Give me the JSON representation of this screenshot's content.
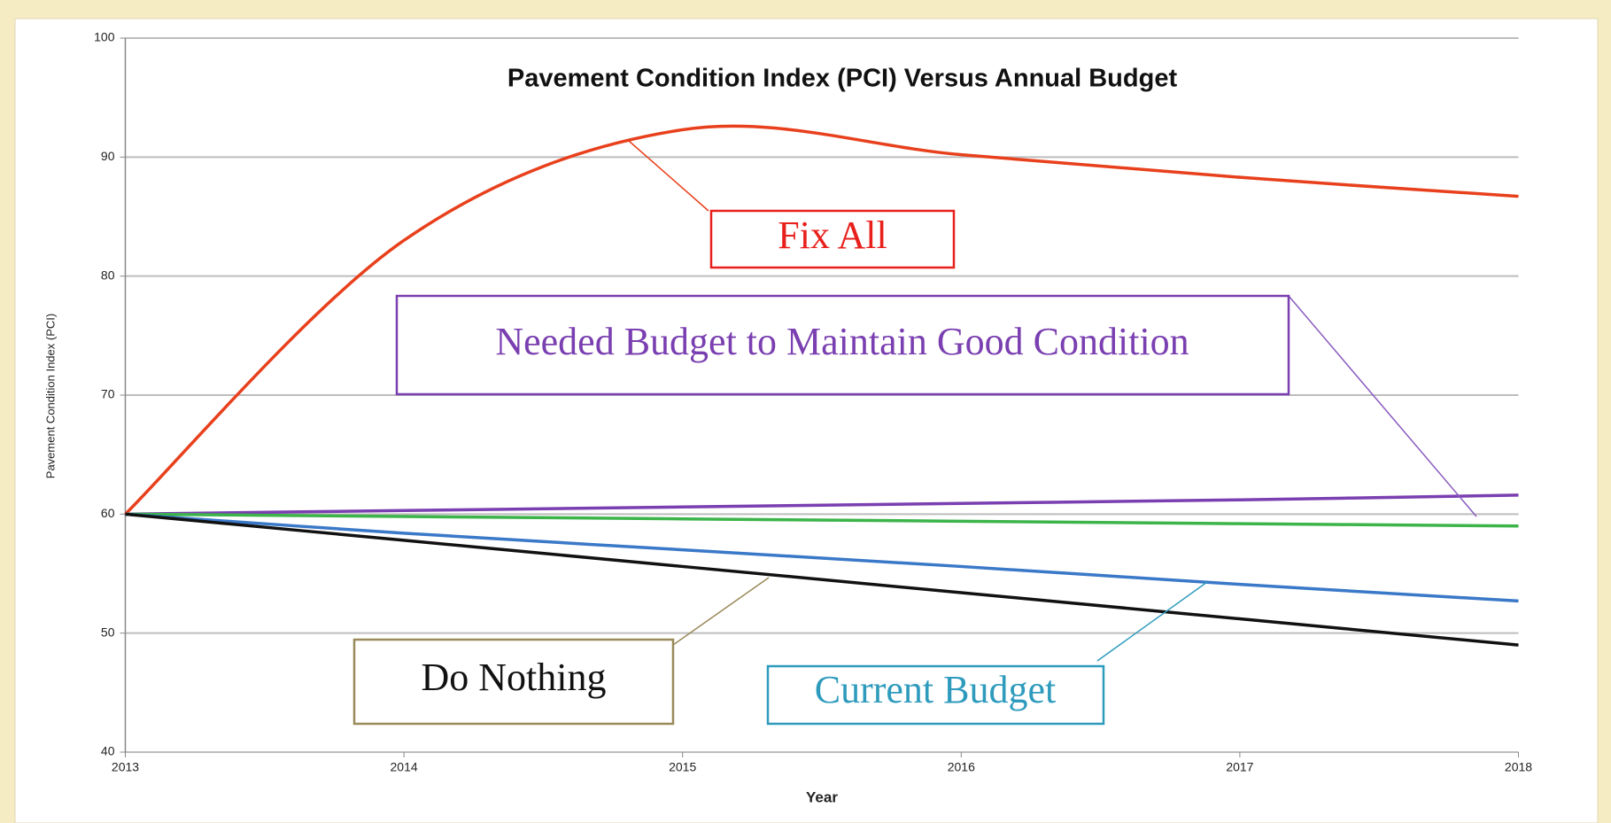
{
  "chart_data": {
    "type": "line",
    "title": "Pavement Condition Index (PCI) Versus Annual Budget",
    "x_label": "Year",
    "y_label": "Pavement Condition Index (PCI)",
    "x": [
      2013,
      2014,
      2015,
      2016,
      2017,
      2018
    ],
    "xlim": [
      2013,
      2018
    ],
    "xticks": [
      2013,
      2014,
      2015,
      2016,
      2017,
      2018
    ],
    "ylim": [
      40,
      100
    ],
    "yticks": [
      40,
      50,
      60,
      70,
      80,
      90,
      100
    ],
    "grid": true,
    "series": [
      {
        "name": "Fix All",
        "color": "#e8401c",
        "values": [
          60,
          83,
          92.3,
          90.2,
          88.3,
          86.7
        ]
      },
      {
        "name": "Needed Budget to Maintain Good Condition",
        "color": "#7a3fb0",
        "values": [
          60,
          60.3,
          60.6,
          60.9,
          61.2,
          61.6
        ]
      },
      {
        "color": "#3cb44a",
        "values": [
          60,
          59.8,
          59.6,
          59.4,
          59.2,
          59
        ]
      },
      {
        "name": "Current Budget",
        "color": "#3a78c8",
        "values": [
          60,
          58.4,
          57,
          55.6,
          54.1,
          52.7
        ]
      },
      {
        "name": "Do Nothing",
        "color": "#111111",
        "values": [
          60,
          57.8,
          55.6,
          53.4,
          51.2,
          49
        ]
      }
    ]
  }
}
